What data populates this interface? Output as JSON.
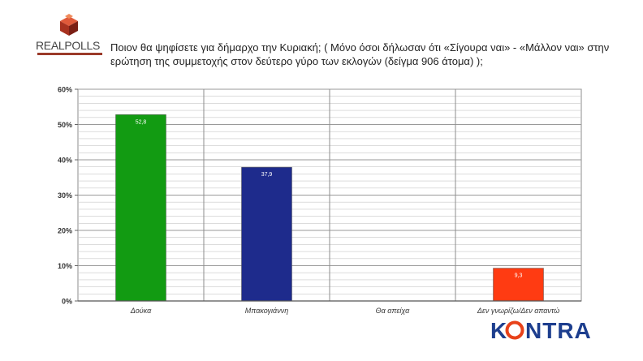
{
  "brand": {
    "poll_logo": "REALPOLLS",
    "media_logo": "KONTRA",
    "media_logo_color": "#1d3e8e",
    "media_logo_accent": "#e8421a"
  },
  "question": "Ποιον θα ψηφίσετε για δήμαρχο την Κυριακή; ( Μόνο όσοι δήλωσαν ότι «Σίγουρα ναι» - «Μάλλον ναι» στην ερώτηση της συμμετοχής στον δεύτερο γύρο των εκλογών (δείγμα 906 άτομα) );",
  "chart_data": {
    "type": "bar",
    "categories": [
      "Δούκα",
      "Μπακογιάννη",
      "Θα απείχα",
      "Δεν γνωρίζω/Δεν απαντώ"
    ],
    "values": [
      52.8,
      37.9,
      null,
      9.3
    ],
    "data_labels": [
      "52,8",
      "37,9",
      "",
      "9,3"
    ],
    "colors": [
      "#129b12",
      "#1e2b8c",
      "#ffffff",
      "#ff3b12"
    ],
    "y_ticks": [
      "0%",
      "10%",
      "20%",
      "30%",
      "40%",
      "50%",
      "60%"
    ],
    "ylim": [
      0,
      60
    ],
    "grid": true,
    "legend": "none"
  }
}
